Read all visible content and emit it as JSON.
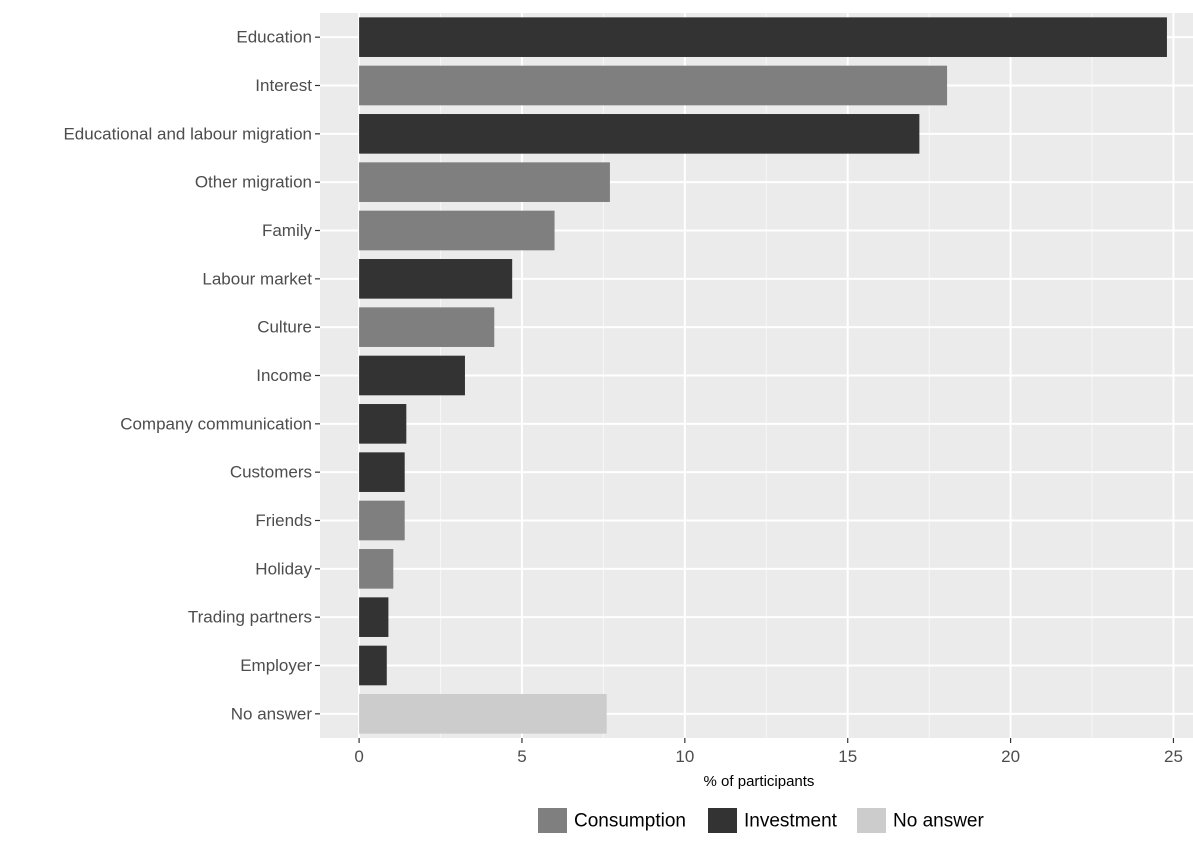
{
  "chart_data": {
    "type": "bar",
    "orientation": "horizontal",
    "title": "",
    "xlabel": "% of participants",
    "ylabel": "",
    "xlim": [
      -1.2,
      25.6
    ],
    "xticks": [
      0,
      5,
      10,
      15,
      20,
      25
    ],
    "grid": true,
    "legend_position": "bottom",
    "categories": [
      "Education",
      "Interest",
      "Educational and labour migration",
      "Other migration",
      "Family",
      "Labour market",
      "Culture",
      "Income",
      "Company communication",
      "Customers",
      "Friends",
      "Holiday",
      "Trading partners",
      "Employer",
      "No answer"
    ],
    "values": [
      24.8,
      18.05,
      17.2,
      7.7,
      6.0,
      4.7,
      4.15,
      3.25,
      1.45,
      1.4,
      1.4,
      1.05,
      0.9,
      0.85,
      7.6
    ],
    "groups": [
      "Investment",
      "Consumption",
      "Investment",
      "Consumption",
      "Consumption",
      "Investment",
      "Consumption",
      "Investment",
      "Investment",
      "Investment",
      "Consumption",
      "Consumption",
      "Investment",
      "Investment",
      "No answer"
    ],
    "legend": [
      {
        "name": "Consumption",
        "color": "#7f7f7f"
      },
      {
        "name": "Investment",
        "color": "#333333"
      },
      {
        "name": "No answer",
        "color": "#cccccc"
      }
    ]
  }
}
